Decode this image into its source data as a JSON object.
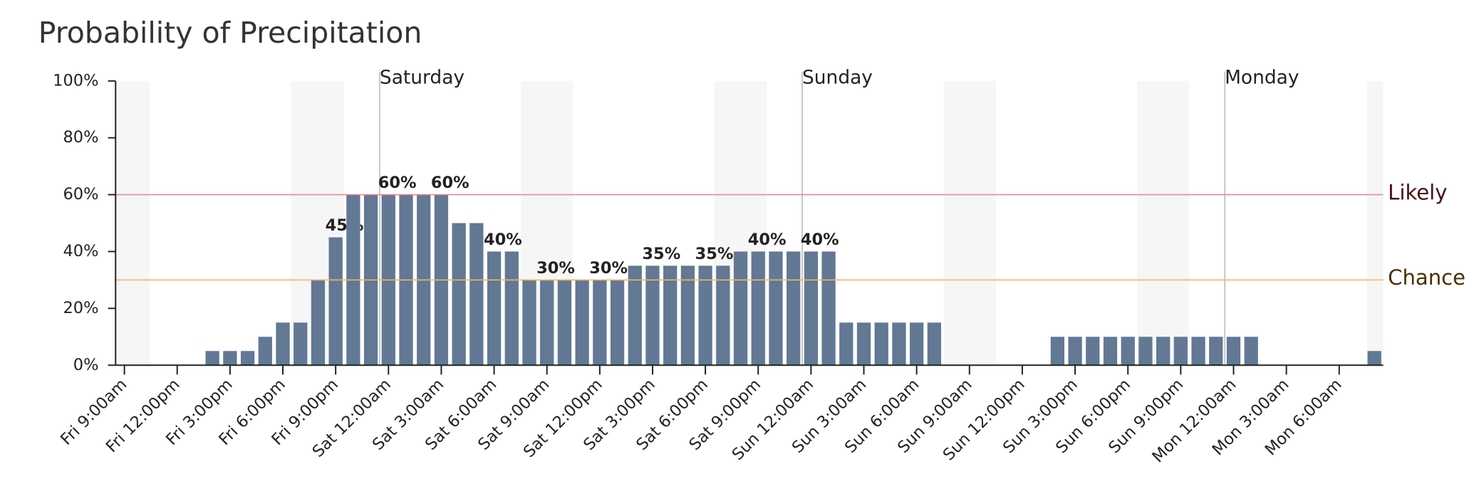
{
  "chart_data": {
    "type": "bar",
    "title": "Probability of Precipitation",
    "categories": [
      "Fri 9:00am",
      null,
      null,
      "Fri 12:00pm",
      null,
      null,
      "Fri 3:00pm",
      null,
      null,
      "Fri 6:00pm",
      null,
      null,
      "Fri 9:00pm",
      null,
      null,
      "Sat 12:00am",
      null,
      null,
      "Sat 3:00am",
      null,
      null,
      "Sat 6:00am",
      null,
      null,
      "Sat 9:00am",
      null,
      null,
      "Sat 12:00pm",
      null,
      null,
      "Sat 3:00pm",
      null,
      null,
      "Sat 6:00pm",
      null,
      null,
      "Sat 9:00pm",
      null,
      null,
      "Sun 12:00am",
      null,
      null,
      "Sun 3:00am",
      null,
      null,
      "Sun 6:00am",
      null,
      null,
      "Sun 9:00am",
      null,
      null,
      "Sun 12:00pm",
      null,
      null,
      "Sun 3:00pm",
      null,
      null,
      "Sun 6:00pm",
      null,
      null,
      "Sun 9:00pm",
      null,
      null,
      "Mon 12:00am",
      null,
      null,
      "Mon 3:00am",
      null,
      null,
      "Mon 6:00am",
      null,
      null
    ],
    "values": [
      0,
      0,
      0,
      0,
      0,
      5,
      5,
      5,
      10,
      15,
      15,
      30,
      45,
      60,
      60,
      60,
      60,
      60,
      60,
      50,
      50,
      40,
      40,
      30,
      30,
      30,
      30,
      30,
      30,
      35,
      35,
      35,
      35,
      35,
      35,
      40,
      40,
      40,
      40,
      40,
      40,
      15,
      15,
      15,
      15,
      15,
      15,
      0,
      0,
      0,
      0,
      0,
      0,
      10,
      10,
      10,
      10,
      10,
      10,
      10,
      10,
      10,
      10,
      10,
      10,
      0,
      0,
      0,
      0,
      0,
      0,
      5
    ],
    "value_labels": [
      null,
      null,
      null,
      null,
      null,
      null,
      null,
      null,
      null,
      null,
      null,
      null,
      "45%",
      null,
      null,
      "60%",
      null,
      null,
      "60%",
      null,
      null,
      "40%",
      null,
      null,
      "30%",
      null,
      null,
      "30%",
      null,
      null,
      "35%",
      null,
      null,
      "35%",
      null,
      null,
      "40%",
      null,
      null,
      "40%",
      null,
      null,
      null,
      null,
      null,
      null,
      null,
      null,
      null,
      null,
      null,
      null,
      null,
      null,
      null,
      null,
      null,
      null,
      null,
      null,
      null,
      null,
      null,
      null,
      null,
      null,
      null,
      null,
      null,
      null,
      null,
      null
    ],
    "color": "#627894",
    "ylim": [
      0,
      100
    ],
    "yticks": [
      {
        "value": 0,
        "label": "0%"
      },
      {
        "value": 20,
        "label": "20%"
      },
      {
        "value": 40,
        "label": "40%"
      },
      {
        "value": 60,
        "label": "60%"
      },
      {
        "value": 80,
        "label": "80%"
      },
      {
        "value": 100,
        "label": "100%"
      }
    ],
    "day_labels": [
      "Saturday",
      "Sunday",
      "Monday"
    ],
    "thresholds": [
      {
        "label": "Likely",
        "value": 60,
        "color": "#e58a96",
        "text_color": "#4a0f14"
      },
      {
        "label": "Chance",
        "value": 30,
        "color": "#f3b46a",
        "text_color": "#4a3000"
      }
    ]
  }
}
